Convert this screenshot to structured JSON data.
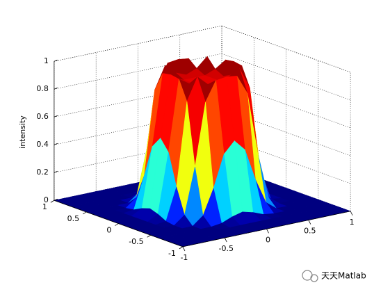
{
  "chart_data": {
    "type": "surface",
    "zlabel": "intensity",
    "colormap": "jet",
    "grid": true,
    "x": [
      -1,
      -0.875,
      -0.75,
      -0.625,
      -0.5,
      -0.375,
      -0.25,
      -0.125,
      0,
      0.125,
      0.25,
      0.375,
      0.5,
      0.625,
      0.75,
      0.875,
      1
    ],
    "y": [
      -1,
      -0.875,
      -0.75,
      -0.625,
      -0.5,
      -0.375,
      -0.25,
      -0.125,
      0,
      0.125,
      0.25,
      0.375,
      0.5,
      0.625,
      0.75,
      0.875,
      1
    ],
    "z": [
      [
        0,
        0,
        0,
        0,
        0,
        0,
        0,
        0,
        0,
        0,
        0,
        0,
        0,
        0,
        0,
        0,
        0
      ],
      [
        0,
        0,
        0,
        0,
        0,
        0,
        0,
        0,
        0,
        0,
        0,
        0,
        0,
        0,
        0,
        0,
        0
      ],
      [
        0,
        0,
        0,
        0,
        0,
        0,
        0,
        0,
        0,
        0,
        0,
        0,
        0,
        0,
        0,
        0,
        0
      ],
      [
        0,
        0,
        0,
        0,
        0,
        0,
        0.01,
        0.04,
        0.06,
        0.04,
        0.01,
        0,
        0,
        0,
        0,
        0,
        0
      ],
      [
        0,
        0,
        0,
        0,
        0,
        0.06,
        0.24,
        0.47,
        0.55,
        0.47,
        0.24,
        0.06,
        0,
        0,
        0,
        0,
        0
      ],
      [
        0,
        0,
        0,
        0,
        0.06,
        0.39,
        0.84,
        0.98,
        0.99,
        0.98,
        0.84,
        0.39,
        0.06,
        0,
        0,
        0,
        0
      ],
      [
        0,
        0,
        0,
        0.01,
        0.24,
        0.84,
        1,
        0.93,
        0.9,
        0.93,
        1,
        0.84,
        0.24,
        0.01,
        0,
        0,
        0
      ],
      [
        0,
        0,
        0,
        0.04,
        0.47,
        0.98,
        0.93,
        0.9,
        0.9,
        0.9,
        0.93,
        0.98,
        0.47,
        0.04,
        0,
        0,
        0
      ],
      [
        0,
        0,
        0,
        0.06,
        0.55,
        0.99,
        0.9,
        0.9,
        0.9,
        0.9,
        0.9,
        0.99,
        0.55,
        0.06,
        0,
        0,
        0
      ],
      [
        0,
        0,
        0,
        0.04,
        0.47,
        0.98,
        0.93,
        0.9,
        0.9,
        0.9,
        0.93,
        0.98,
        0.47,
        0.04,
        0,
        0,
        0
      ],
      [
        0,
        0,
        0,
        0.01,
        0.24,
        0.84,
        1,
        0.93,
        0.9,
        0.93,
        1,
        0.84,
        0.24,
        0.01,
        0,
        0,
        0
      ],
      [
        0,
        0,
        0,
        0,
        0.06,
        0.39,
        0.84,
        0.98,
        0.99,
        0.98,
        0.84,
        0.39,
        0.06,
        0,
        0,
        0,
        0
      ],
      [
        0,
        0,
        0,
        0,
        0,
        0.06,
        0.24,
        0.47,
        0.55,
        0.47,
        0.24,
        0.06,
        0,
        0,
        0,
        0,
        0
      ],
      [
        0,
        0,
        0,
        0,
        0,
        0,
        0.01,
        0.04,
        0.06,
        0.04,
        0.01,
        0,
        0,
        0,
        0,
        0,
        0
      ],
      [
        0,
        0,
        0,
        0,
        0,
        0,
        0,
        0,
        0,
        0,
        0,
        0,
        0,
        0,
        0,
        0,
        0
      ],
      [
        0,
        0,
        0,
        0,
        0,
        0,
        0,
        0,
        0,
        0,
        0,
        0,
        0,
        0,
        0,
        0,
        0
      ],
      [
        0,
        0,
        0,
        0,
        0,
        0,
        0,
        0,
        0,
        0,
        0,
        0,
        0,
        0,
        0,
        0,
        0
      ]
    ],
    "xlim": [
      -1,
      1
    ],
    "ylim": [
      -1,
      1
    ],
    "zlim": [
      0,
      1
    ],
    "xticks": [
      -1,
      -0.5,
      0,
      0.5,
      1
    ],
    "yticks": [
      -1,
      -0.5,
      0,
      0.5,
      1
    ],
    "zticks": [
      0,
      0.2,
      0.4,
      0.6,
      0.8,
      1
    ],
    "watermark": "天天Matlab"
  }
}
